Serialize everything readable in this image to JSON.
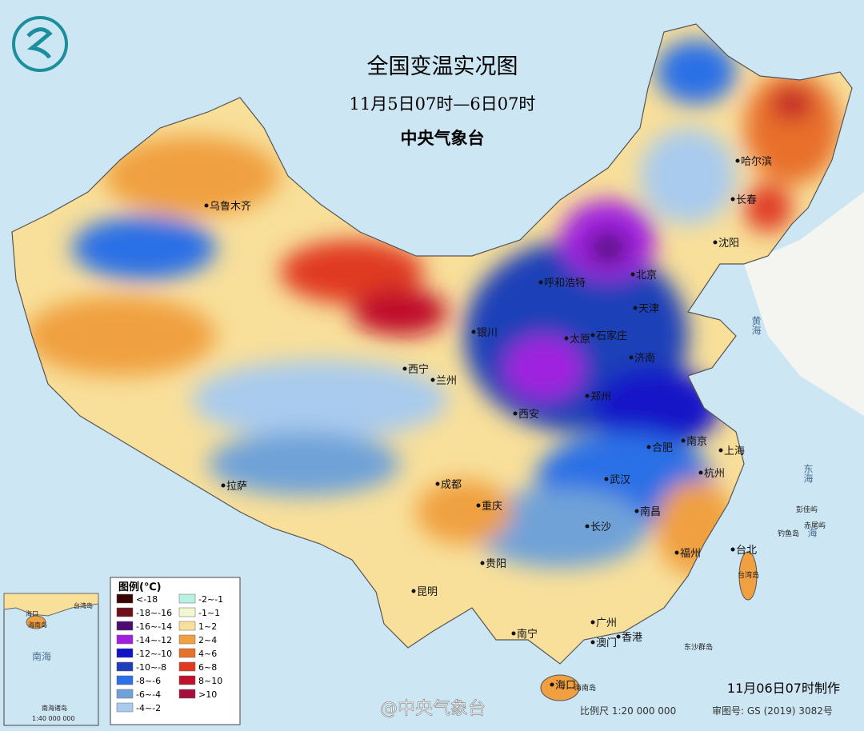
{
  "header": {
    "title": "全国变温实况图",
    "subtitle": "11月5日07时—6日07时",
    "agency": "中央气象台"
  },
  "legend": {
    "title": "图例(℃)",
    "items": [
      {
        "label": "<-18",
        "color": "#3a0505"
      },
      {
        "label": "-18~-16",
        "color": "#6e0f1a"
      },
      {
        "label": "-16~-14",
        "color": "#4b0b72"
      },
      {
        "label": "-14~-12",
        "color": "#a020e0"
      },
      {
        "label": "-12~-10",
        "color": "#1212c8"
      },
      {
        "label": "-10~-8",
        "color": "#1f3fb8"
      },
      {
        "label": "-8~-6",
        "color": "#2b70e6"
      },
      {
        "label": "-6~-4",
        "color": "#70a2d8"
      },
      {
        "label": "-4~-2",
        "color": "#a9cbee"
      },
      {
        "label": "-2~-1",
        "color": "#b8f0e4"
      },
      {
        "label": "-1~1",
        "color": "#f2f8d2"
      },
      {
        "label": "1~2",
        "color": "#f8df9a"
      },
      {
        "label": "2~4",
        "color": "#f0a040"
      },
      {
        "label": "4~6",
        "color": "#e8702a"
      },
      {
        "label": "6~8",
        "color": "#e03a20"
      },
      {
        "label": "8~10",
        "color": "#c0102a"
      },
      {
        "label": ">10",
        "color": "#a3103c"
      }
    ]
  },
  "cities": [
    "乌鲁木齐",
    "哈尔滨",
    "长春",
    "沈阳",
    "呼和浩特",
    "北京",
    "天津",
    "银川",
    "太原",
    "石家庄",
    "济南",
    "西宁",
    "兰州",
    "郑州",
    "西安",
    "南京",
    "合肥",
    "上海",
    "武汉",
    "杭州",
    "拉萨",
    "成都",
    "重庆",
    "南昌",
    "长沙",
    "福州",
    "台北",
    "贵阳",
    "昆明",
    "广州",
    "南宁",
    "澳门",
    "香港",
    "海口"
  ],
  "small_labels": [
    "台湾岛",
    "钓鱼岛",
    "赤尾屿",
    "彭佳屿",
    "东沙群岛",
    "海南岛"
  ],
  "seas": [
    "黄海",
    "东海",
    "海"
  ],
  "inset": {
    "labels": [
      "海口",
      "海南岛",
      "台湾岛",
      "南海",
      "南海诸岛",
      "1:40 000 000"
    ]
  },
  "footer": {
    "made": "11月06日07时制作",
    "scale": "比例尺 1:20 000 000",
    "review": "审图号: GS (2019) 3082号",
    "watermark": "@中央气象台"
  }
}
